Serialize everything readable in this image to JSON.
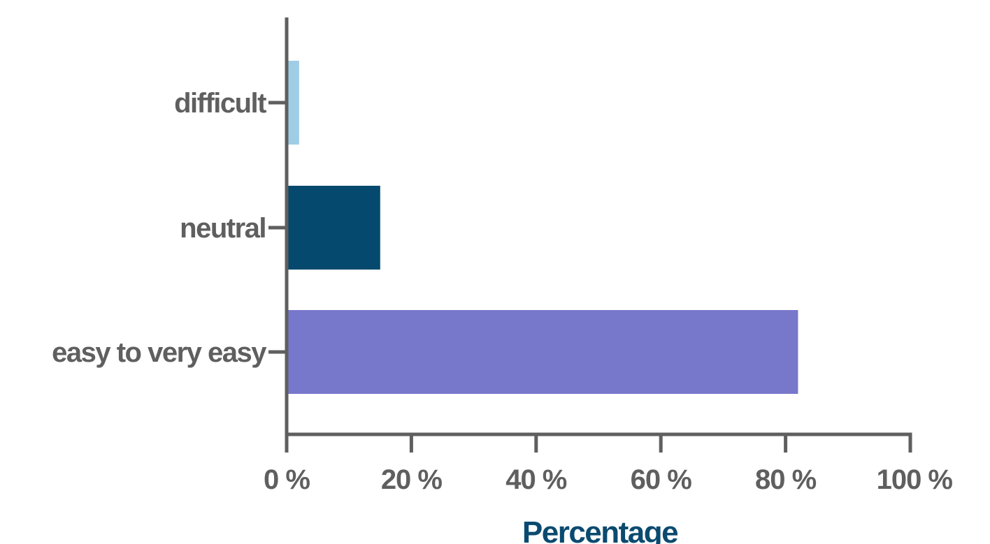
{
  "chart_data": {
    "type": "bar",
    "orientation": "horizontal",
    "categories": [
      "difficult",
      "neutral",
      "easy to very easy"
    ],
    "values": [
      2,
      15,
      82
    ],
    "colors": [
      "#9fcde6",
      "#054a6e",
      "#7777cb"
    ],
    "xlabel": "Percentage",
    "ylabel": "",
    "xlim": [
      0,
      100
    ],
    "xticks": [
      0,
      20,
      40,
      60,
      80,
      100
    ],
    "xtick_labels": [
      "0 %",
      "20 %",
      "40 %",
      "60 %",
      "80 %",
      "100 %"
    ],
    "grid": false,
    "axis_color": "#5f5f5f"
  }
}
